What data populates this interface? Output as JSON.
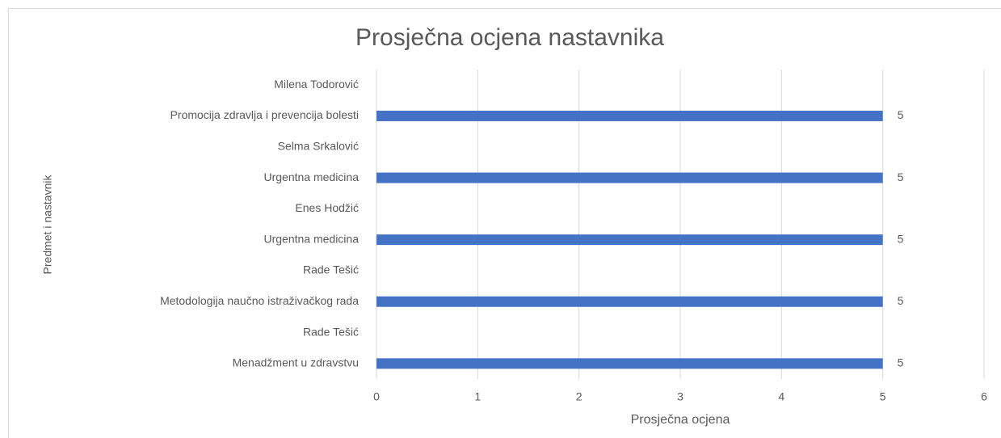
{
  "chart_data": {
    "type": "bar",
    "orientation": "horizontal",
    "title": "Prosječna ocjena nastavnika",
    "x_label": "Prosječna ocjena",
    "y_label": "Predmet i nastavnik",
    "categories": [
      "Milena Todorović",
      "Promocija zdravlja i prevencija bolesti",
      "Selma Srkalović",
      "Urgentna medicina",
      "Enes Hodžić",
      "Urgentna medicina",
      "Rade Tešić",
      "Metodologija naučno istraživačkog rada",
      "Rade Tešić",
      "Menadžment u zdravstvu"
    ],
    "values": [
      null,
      5,
      null,
      5,
      null,
      5,
      null,
      5,
      null,
      5
    ],
    "color": "#4472c4",
    "xlim": [
      0,
      6
    ],
    "xticks": [
      0,
      1,
      2,
      3,
      4,
      5,
      6
    ],
    "grid": true,
    "data_labels": true
  }
}
